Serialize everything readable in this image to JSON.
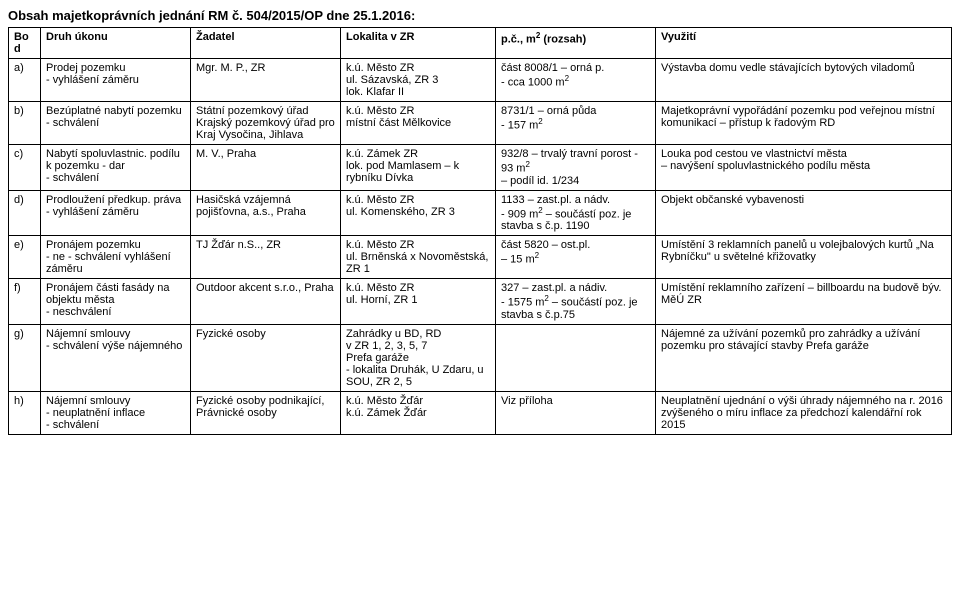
{
  "title": "Obsah majetkoprávních jednání RM č. 504/2015/OP dne 25.1.2016:",
  "headers": {
    "bod": "Bod",
    "druh": "Druh úkonu",
    "zadatel": "Žadatel",
    "lokalita": "Lokalita v ZR",
    "rozsah_html": "p.č., m<sup>2</sup> (rozsah)",
    "vyuziti": "Využití"
  },
  "rows": [
    {
      "bod": "a)",
      "druh": "Prodej pozemku\n- vyhlášení záměru",
      "zadatel": "Mgr. M. P., ZR",
      "lokalita": "k.ú. Město ZR\nul. Sázavská, ZR 3\nlok. Klafar II",
      "rozsah_html": "část  8008/1 – orná p.\n- cca 1000 m<sup>2</sup>",
      "vyuziti": "Výstavba domu vedle stávajících bytových viladomů"
    },
    {
      "bod": "b)",
      "druh": "Bezúplatné nabytí pozemku\n- schválení",
      "zadatel": "Státní pozemkový úřad Krajský pozemkový úřad pro Kraj Vysočina, Jihlava",
      "lokalita": "k.ú. Město ZR\nmístní část Mělkovice",
      "rozsah_html": "  8731/1 – orná půda\n  - 157 m<sup>2</sup>",
      "vyuziti": "Majetkoprávní vypořádání pozemku pod veřejnou místní komunikací – přístup k řadovým RD"
    },
    {
      "bod": "c)",
      "druh": "Nabytí spoluvlastnic. podílu k pozemku - dar\n- schválení",
      "zadatel": "M. V., Praha",
      "lokalita": "k.ú. Zámek ZR\nlok. pod Mamlasem – k rybníku Dívka",
      "rozsah_html": "932/8 – trvalý travní porost  - 93 m<sup>2</sup>\n– podíl id. 1/234",
      "vyuziti": "Louka pod cestou ve vlastnictví města\n – navýšení spoluvlastnického podílu města"
    },
    {
      "bod": "d)",
      "druh": "Prodloužení předkup. práva\n- vyhlášení záměru",
      "zadatel": "Hasičská vzájemná pojišťovna, a.s., Praha",
      "lokalita": "k.ú. Město ZR\nul. Komenského, ZR 3",
      "rozsah_html": "1133 – zast.pl. a nádv.\n- 909 m<sup>2</sup> – součástí poz. je stavba s č.p. 1190",
      "vyuziti": "Objekt občanské vybavenosti"
    },
    {
      "bod": "e)",
      "druh": "Pronájem pozemku\n- ne - schválení vyhlášení záměru",
      "zadatel": "TJ Žďár n.S.., ZR",
      "lokalita": "k.ú. Město ZR\nul. Brněnská x Novoměstská, ZR 1",
      "rozsah_html": "  část 5820 – ost.pl.\n   – 15 m<sup>2</sup>",
      "vyuziti": "Umístění 3 reklamních panelů u volejbalových kurtů „Na Rybníčku\" u světelné křižovatky"
    },
    {
      "bod": "f)",
      "druh": "Pronájem části fasády na objektu města\n- neschválení",
      "zadatel": "Outdoor akcent s.r.o., Praha",
      "lokalita": "k.ú. Město ZR\nul. Horní, ZR 1",
      "rozsah_html": "327 – zast.pl. a nádiv.\n- 1575 m<sup>2</sup> – součástí poz. je stavba s č.p.75",
      "vyuziti": "Umístění reklamního zařízení – billboardu na budově býv. MěÚ ZR"
    },
    {
      "bod": "g)",
      "druh": "Nájemní smlouvy\n- schválení výše nájemného",
      "zadatel": "Fyzické osoby",
      "lokalita": "Zahrádky u BD, RD\nv ZR 1, 2, 3, 5, 7\nPrefa garáže\n- lokalita Druhák, U Zdaru, u SOU, ZR 2, 5",
      "rozsah_html": "",
      "vyuziti": "Nájemné za užívání pozemků pro zahrádky a užívání pozemku pro stávající stavby Prefa garáže"
    },
    {
      "bod": "h)",
      "druh": "Nájemní smlouvy\n- neuplatnění inflace\n- schválení",
      "zadatel": "Fyzické osoby podnikající, Právnické osoby",
      "lokalita": "k.ú. Město Žďár\nk.ú. Zámek Žďár",
      "rozsah_html": "Viz příloha",
      "vyuziti": "Neuplatnění ujednání o výši úhrady nájemného na r. 2016 zvýšeného o míru inflace za předchozí kalendářní rok 2015"
    }
  ]
}
